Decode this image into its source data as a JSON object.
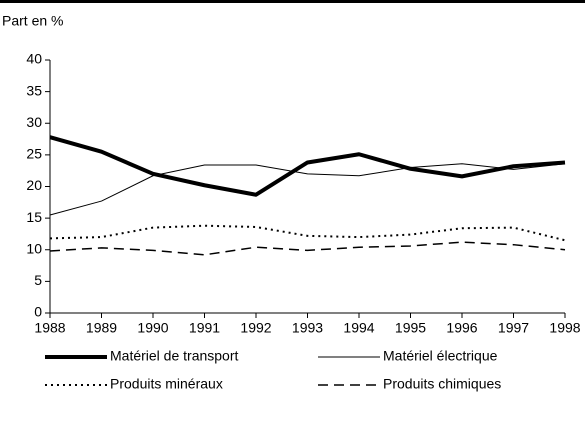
{
  "chart_data": {
    "type": "line",
    "ylabel": "Part en %",
    "x": [
      1988,
      1989,
      1990,
      1991,
      1992,
      1993,
      1994,
      1995,
      1996,
      1997,
      1998
    ],
    "xlim": [
      1988,
      1998
    ],
    "xticks": [
      1988,
      1989,
      1990,
      1991,
      1992,
      1993,
      1994,
      1995,
      1996,
      1997,
      1998
    ],
    "ylim": [
      0,
      40
    ],
    "yticks": [
      0,
      5,
      10,
      15,
      20,
      25,
      30,
      35,
      40
    ],
    "grid": false,
    "series": [
      {
        "name": "Matériel de transport",
        "color": "#000000",
        "line_style": "solid",
        "line_width": 4,
        "values": [
          27.8,
          25.5,
          22,
          20.2,
          18.7,
          23.8,
          25.1,
          22.8,
          21.6,
          23.2,
          23.8
        ]
      },
      {
        "name": "Matériel électrique",
        "color": "#000000",
        "line_style": "solid",
        "line_width": 1,
        "values": [
          15.5,
          17.7,
          21.7,
          23.4,
          23.4,
          22,
          21.7,
          23,
          23.6,
          22.7,
          23.6
        ]
      },
      {
        "name": "Produits minéraux",
        "color": "#000000",
        "line_style": "dotted",
        "line_width": 2,
        "values": [
          11.8,
          12,
          13.5,
          13.8,
          13.6,
          12.2,
          12,
          12.4,
          13.4,
          13.5,
          11.5
        ]
      },
      {
        "name": "Produits chimiques",
        "color": "#000000",
        "line_style": "dashed",
        "line_width": 1.5,
        "values": [
          9.8,
          10.3,
          9.9,
          9.2,
          10.4,
          9.9,
          10.4,
          10.6,
          11.2,
          10.8,
          10.0
        ]
      }
    ]
  }
}
